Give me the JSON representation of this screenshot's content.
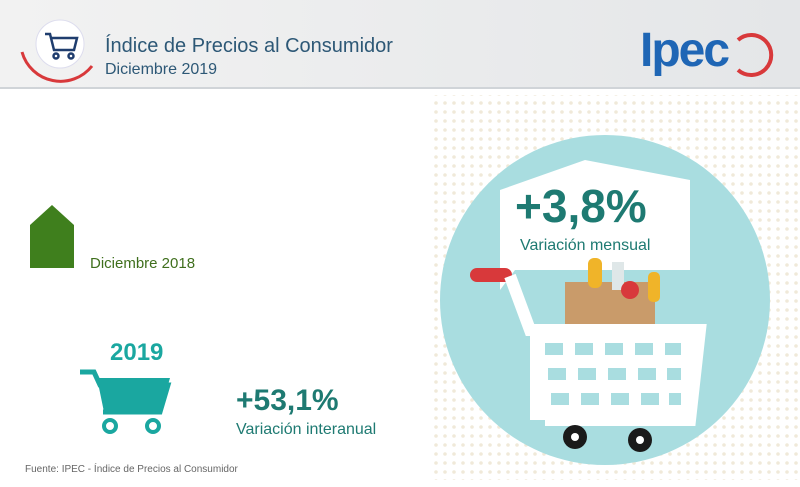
{
  "header": {
    "title": "Índice de Precios al Consumidor",
    "subtitle": "Diciembre 2019",
    "logo": "Ipec"
  },
  "monthly": {
    "value": "+3,8%",
    "label": "Variación mensual"
  },
  "reference": {
    "label": "Diciembre 2018"
  },
  "annual": {
    "year": "2019",
    "value": "+53,1%",
    "label": "Variación interanual"
  },
  "footer": {
    "source": "Fuente: IPEC - Índice de Precios al Consumidor"
  }
}
